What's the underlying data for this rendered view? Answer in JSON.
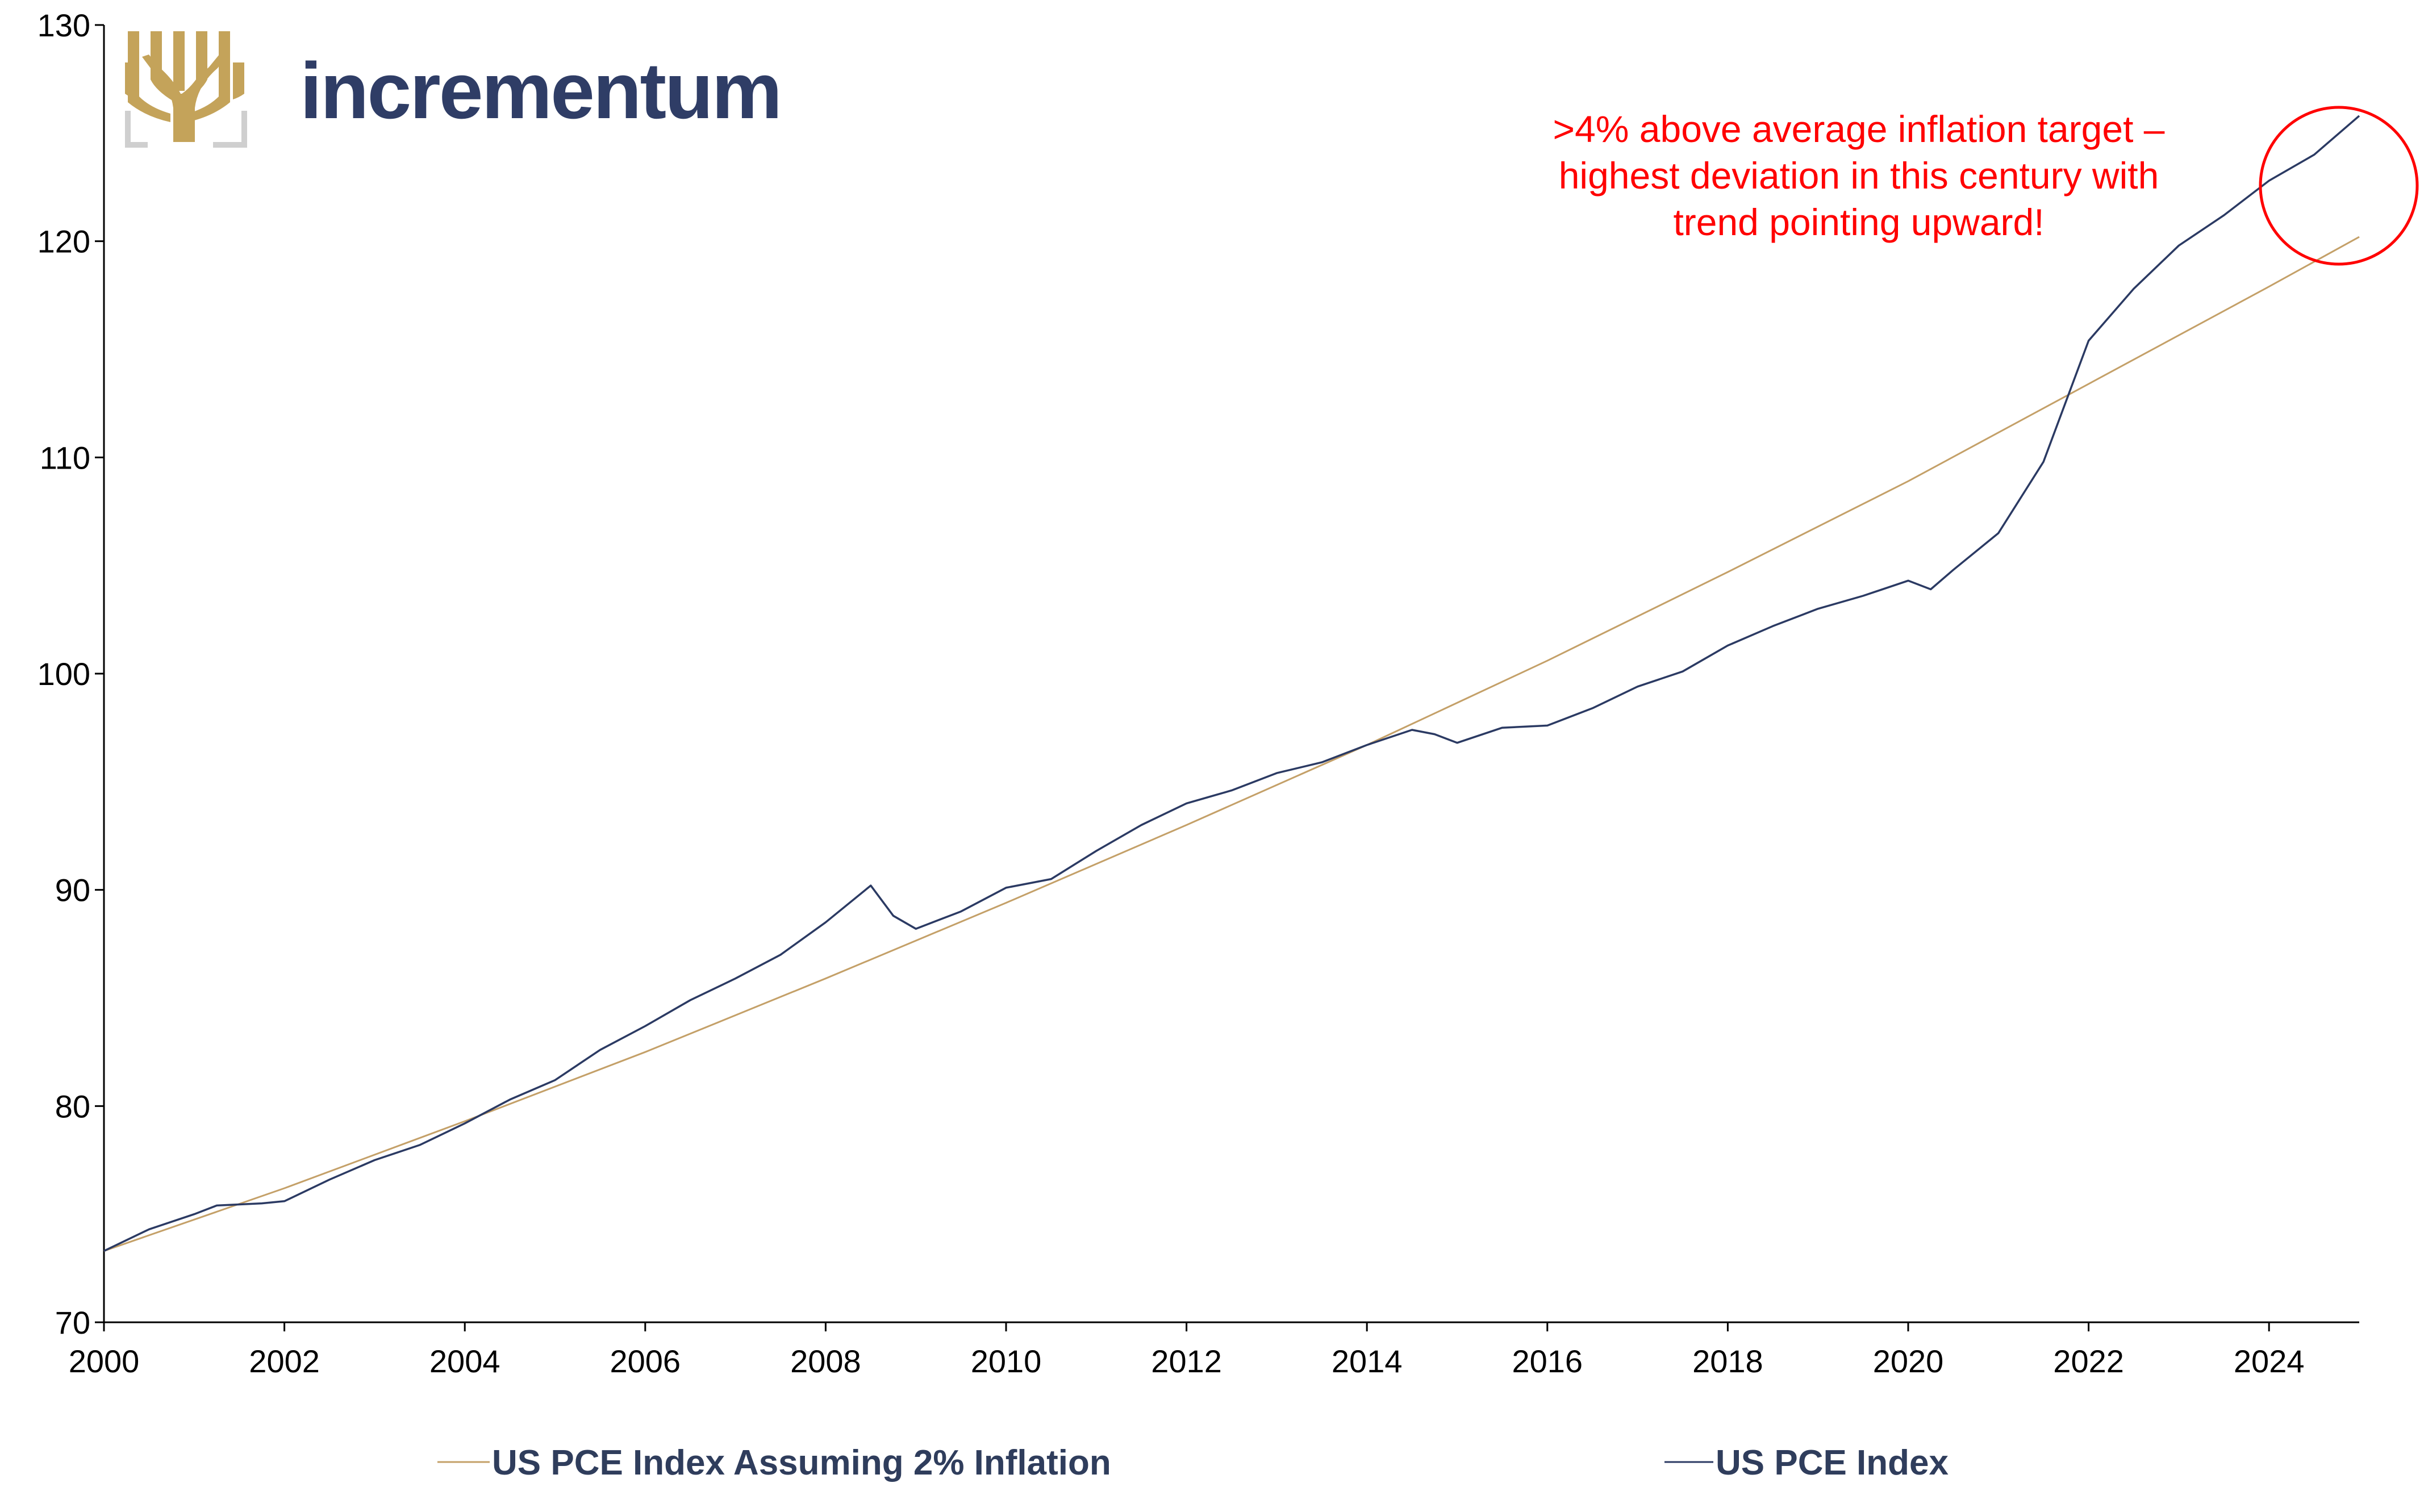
{
  "brand": {
    "name": "incrementum",
    "logo_icon": "tree-logo",
    "logo_color": "#c4a35a",
    "name_color": "#2f3d66"
  },
  "annotation": {
    "lines": [
      ">4% above average inflation target –",
      "highest deviation in this century with",
      "trend pointing upward!"
    ],
    "color": "#ff0000"
  },
  "chart_data": {
    "type": "line",
    "title": "",
    "xlabel": "",
    "ylabel": "",
    "xlim": [
      2000,
      2025
    ],
    "ylim": [
      70,
      130
    ],
    "x_ticks": [
      "2000",
      "2002",
      "2004",
      "2006",
      "2008",
      "2010",
      "2012",
      "2014",
      "2016",
      "2018",
      "2020",
      "2022",
      "2024"
    ],
    "y_ticks": [
      "70",
      "80",
      "90",
      "100",
      "110",
      "120",
      "130"
    ],
    "grid": false,
    "legend_position": "bottom",
    "series": [
      {
        "name": "US PCE Index Assuming 2% Inflation",
        "color": "#c4a068",
        "x": [
          2000,
          2002,
          2004,
          2006,
          2008,
          2010,
          2012,
          2014,
          2016,
          2018,
          2020,
          2022,
          2024,
          2025
        ],
        "y": [
          73.3,
          76.2,
          79.3,
          82.5,
          85.9,
          89.4,
          93.0,
          96.7,
          100.6,
          104.7,
          108.9,
          113.4,
          117.9,
          120.2
        ]
      },
      {
        "name": "US PCE Index",
        "color": "#2b3a63",
        "x": [
          2000,
          2000.5,
          2001,
          2001.25,
          2001.75,
          2002,
          2002.5,
          2003,
          2003.5,
          2004,
          2004.5,
          2005,
          2005.5,
          2006,
          2006.5,
          2007,
          2007.5,
          2008,
          2008.5,
          2008.75,
          2009,
          2009.5,
          2010,
          2010.5,
          2011,
          2011.5,
          2012,
          2012.5,
          2013,
          2013.5,
          2014,
          2014.5,
          2014.75,
          2015,
          2015.5,
          2016,
          2016.5,
          2017,
          2017.5,
          2018,
          2018.5,
          2019,
          2019.5,
          2020,
          2020.25,
          2020.5,
          2021,
          2021.5,
          2022,
          2022.5,
          2023,
          2023.5,
          2024,
          2024.5,
          2025
        ],
        "y": [
          73.3,
          74.3,
          75.0,
          75.4,
          75.5,
          75.6,
          76.6,
          77.5,
          78.2,
          79.2,
          80.3,
          81.2,
          82.6,
          83.7,
          84.9,
          85.9,
          87.0,
          88.5,
          90.2,
          88.8,
          88.2,
          89.0,
          90.1,
          90.5,
          91.8,
          93.0,
          94.0,
          94.6,
          95.4,
          95.9,
          96.7,
          97.4,
          97.2,
          96.8,
          97.5,
          97.6,
          98.4,
          99.4,
          100.1,
          101.3,
          102.2,
          103.0,
          103.6,
          104.3,
          103.9,
          104.8,
          106.5,
          109.8,
          115.4,
          117.8,
          119.8,
          121.2,
          122.8,
          124.0,
          125.8
        ]
      }
    ]
  }
}
